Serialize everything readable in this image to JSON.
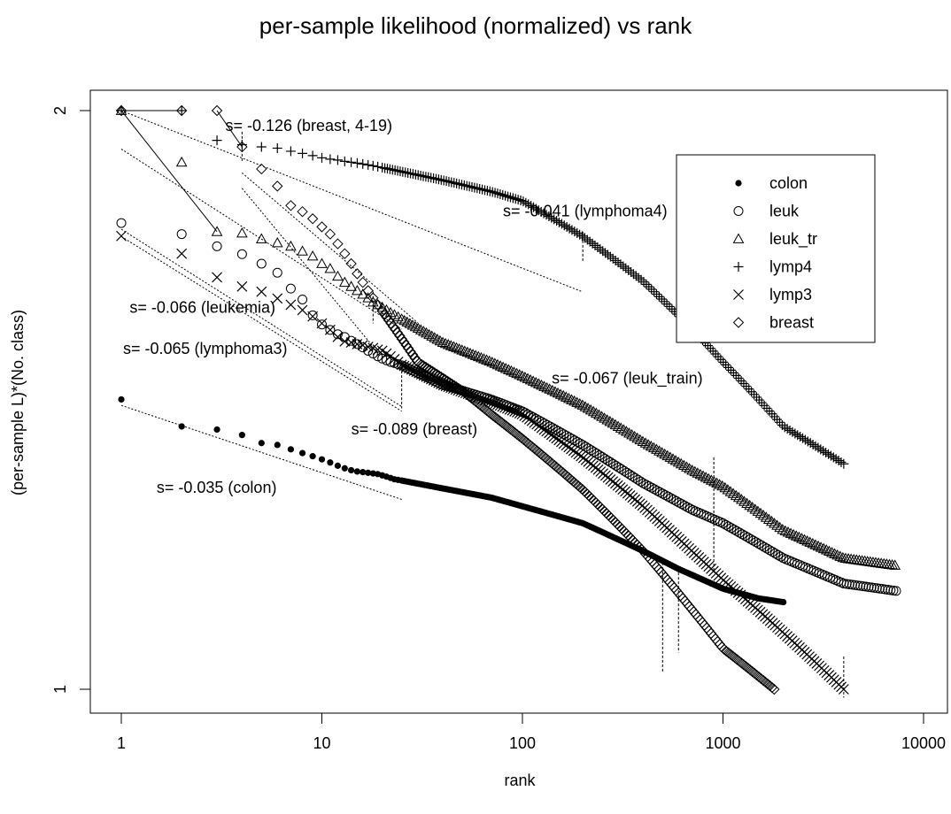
{
  "chart_data": {
    "type": "scatter",
    "title": "per-sample likelihood (normalized)  vs rank",
    "xlabel": "rank",
    "ylabel": "(per-sample L)*(No. class)",
    "x_scale": "log",
    "y_scale": "log",
    "xlim": [
      0.8,
      11000
    ],
    "ylim": [
      0.96,
      2.04
    ],
    "x_ticks": [
      1,
      10,
      100,
      1000,
      10000
    ],
    "x_tick_labels": [
      "1",
      "10",
      "100",
      "1000",
      "10000"
    ],
    "y_ticks": [
      1,
      2
    ],
    "y_tick_labels": [
      "1",
      "2"
    ],
    "grid": false,
    "legend_position": "top-right",
    "series": [
      {
        "name": "colon",
        "marker": "dot",
        "head_x": [
          1,
          2,
          3,
          4,
          5,
          6,
          7,
          8,
          9,
          10,
          11,
          12,
          13,
          14,
          15,
          16,
          17,
          18,
          19,
          20,
          21,
          22,
          23,
          24,
          25
        ],
        "head_y": [
          1.415,
          1.37,
          1.365,
          1.356,
          1.343,
          1.34,
          1.333,
          1.327,
          1.322,
          1.317,
          1.312,
          1.307,
          1.303,
          1.3,
          1.298,
          1.297,
          1.296,
          1.295,
          1.294,
          1.292,
          1.29,
          1.288,
          1.286,
          1.285,
          1.284
        ],
        "tail_x": [
          25,
          40,
          70,
          100,
          200,
          400,
          600,
          1000,
          1500,
          2000
        ],
        "tail_y": [
          1.284,
          1.272,
          1.258,
          1.245,
          1.22,
          1.18,
          1.155,
          1.128,
          1.115,
          1.11
        ]
      },
      {
        "name": "leuk",
        "marker": "circle",
        "head_x": [
          1,
          2,
          3,
          4,
          5,
          6,
          7,
          8,
          9,
          10,
          11,
          12,
          13,
          14,
          15,
          16,
          17,
          18,
          19,
          20,
          21,
          22,
          23,
          24,
          25
        ],
        "head_y": [
          1.748,
          1.725,
          1.7,
          1.684,
          1.665,
          1.647,
          1.616,
          1.595,
          1.565,
          1.548,
          1.538,
          1.53,
          1.525,
          1.518,
          1.512,
          1.506,
          1.5,
          1.495,
          1.49,
          1.486,
          1.483,
          1.48,
          1.478,
          1.476,
          1.474
        ],
        "tail_x": [
          25,
          40,
          70,
          100,
          200,
          400,
          700,
          1000,
          2000,
          4000,
          7300
        ],
        "tail_y": [
          1.474,
          1.44,
          1.415,
          1.395,
          1.34,
          1.28,
          1.24,
          1.22,
          1.17,
          1.135,
          1.125
        ]
      },
      {
        "name": "leuk_tr",
        "marker": "triangle",
        "head_x": [
          1,
          2,
          3,
          4,
          5,
          6,
          7,
          8,
          9,
          10,
          11,
          12,
          13,
          14,
          15,
          16,
          17,
          18,
          19,
          20,
          21,
          22,
          23,
          24,
          25
        ],
        "head_y": [
          2.0,
          1.88,
          1.73,
          1.727,
          1.715,
          1.707,
          1.7,
          1.69,
          1.68,
          1.665,
          1.655,
          1.64,
          1.628,
          1.62,
          1.612,
          1.605,
          1.598,
          1.59,
          1.585,
          1.58,
          1.575,
          1.57,
          1.566,
          1.562,
          1.558
        ],
        "tail_x": [
          25,
          40,
          70,
          100,
          200,
          400,
          700,
          1000,
          2000,
          4000,
          7200
        ],
        "tail_y": [
          1.558,
          1.515,
          1.48,
          1.455,
          1.405,
          1.345,
          1.3,
          1.275,
          1.21,
          1.17,
          1.16
        ]
      },
      {
        "name": "lymp4",
        "marker": "plus",
        "head_x": [
          1,
          2,
          3,
          4,
          5,
          6,
          7,
          8,
          9,
          10,
          11,
          12,
          13,
          14,
          15,
          16,
          17,
          18,
          19,
          20
        ],
        "head_y": [
          2.0,
          2.0,
          1.93,
          1.92,
          1.915,
          1.912,
          1.905,
          1.9,
          1.895,
          1.89,
          1.887,
          1.885,
          1.882,
          1.88,
          1.878,
          1.876,
          1.874,
          1.872,
          1.87,
          1.868
        ],
        "tail_x": [
          20,
          40,
          70,
          100,
          200,
          400,
          700,
          1000,
          2000,
          4000
        ],
        "tail_y": [
          1.868,
          1.84,
          1.815,
          1.795,
          1.72,
          1.63,
          1.54,
          1.48,
          1.37,
          1.31
        ]
      },
      {
        "name": "lymp3",
        "marker": "cross",
        "head_x": [
          1,
          2,
          3,
          4,
          5,
          6,
          7,
          8,
          9,
          10,
          11,
          12,
          13,
          14,
          15,
          16,
          17,
          18,
          19,
          20,
          21,
          22,
          23,
          24,
          25
        ],
        "head_y": [
          1.721,
          1.685,
          1.638,
          1.62,
          1.61,
          1.597,
          1.585,
          1.575,
          1.563,
          1.55,
          1.538,
          1.525,
          1.517,
          1.515,
          1.512,
          1.51,
          1.507,
          1.505,
          1.502,
          1.5,
          1.495,
          1.49,
          1.485,
          1.48,
          1.475
        ],
        "tail_x": [
          25,
          40,
          70,
          100,
          200,
          400,
          700,
          1000,
          2000,
          4000
        ],
        "tail_y": [
          1.475,
          1.44,
          1.41,
          1.39,
          1.32,
          1.245,
          1.18,
          1.14,
          1.07,
          1.0
        ]
      },
      {
        "name": "breast",
        "marker": "diamond",
        "head_x": [
          1,
          2,
          3,
          4,
          5,
          6,
          7,
          8,
          9,
          10,
          11,
          12,
          13,
          14,
          15,
          16,
          17,
          18,
          19,
          20
        ],
        "head_y": [
          2.0,
          2.0,
          2.0,
          1.915,
          1.865,
          1.827,
          1.785,
          1.772,
          1.757,
          1.74,
          1.725,
          1.705,
          1.685,
          1.665,
          1.645,
          1.628,
          1.612,
          1.598,
          1.585,
          1.573
        ],
        "tail_x": [
          20,
          30,
          50,
          70,
          100,
          200,
          400,
          700,
          1000,
          1800
        ],
        "tail_y": [
          1.573,
          1.48,
          1.43,
          1.39,
          1.35,
          1.27,
          1.18,
          1.1,
          1.05,
          1.0
        ]
      }
    ],
    "fit_lines": [
      {
        "label": "s= -0.035 (colon)",
        "slope": -0.035,
        "x_from": 1,
        "x_to": 25,
        "y_at_x1": 1.405
      },
      {
        "label": "s= -0.066 (leukemia)",
        "slope": -0.066,
        "x_from": 1,
        "x_to": 25,
        "y_at_x1": 1.735
      },
      {
        "label": "s= -0.065 (lymphoma3)",
        "slope": -0.065,
        "x_from": 1,
        "x_to": 25,
        "y_at_x1": 1.72
      },
      {
        "label": "s= -0.067 (leuk_train)",
        "slope": -0.067,
        "x_from": 1,
        "x_to": 25,
        "y_at_x1": 1.91
      },
      {
        "label": "s= -0.041 (lymphoma4)",
        "slope": -0.041,
        "x_from": 1,
        "x_to": 200,
        "y_at_x1": 2.0
      },
      {
        "label": "s= -0.089 (breast)",
        "slope": -0.089,
        "x_from": 4,
        "x_to": 30,
        "y_at_x1": 2.1
      },
      {
        "label": "s= -0.126 (breast, 4-19)",
        "slope": -0.126,
        "x_from": 4,
        "x_to": 19,
        "y_at_x1": 2.17
      }
    ],
    "annotations": [
      {
        "text": "s= -0.126 (breast, 4-19)",
        "x": 3.3,
        "y": 1.952
      },
      {
        "text": "s= -0.041 (lymphoma4)",
        "x": 80,
        "y": 1.762
      },
      {
        "text": "s= -0.066 (leukemia)",
        "x": 1.1,
        "y": 1.57
      },
      {
        "text": "s= -0.065 (lymphoma3)",
        "x": 1.02,
        "y": 1.494
      },
      {
        "text": "s= -0.067 (leuk_train)",
        "x": 140,
        "y": 1.442
      },
      {
        "text": "s= -0.089 (breast)",
        "x": 14,
        "y": 1.357
      },
      {
        "text": "s= -0.035 (colon)",
        "x": 1.5,
        "y": 1.265
      }
    ],
    "vertical_markers": [
      {
        "x": 4,
        "y_from": 1.88,
        "y_to": 1.95
      },
      {
        "x": 200,
        "y_from": 1.67,
        "y_to": 1.73
      },
      {
        "x": 18,
        "y_from": 1.55,
        "y_to": 1.61
      },
      {
        "x": 25,
        "y_from": 1.4,
        "y_to": 1.48
      },
      {
        "x": 900,
        "y_from": 1.15,
        "y_to": 1.32
      },
      {
        "x": 500,
        "y_from": 1.02,
        "y_to": 1.17
      },
      {
        "x": 600,
        "y_from": 1.045,
        "y_to": 1.15
      },
      {
        "x": 4000,
        "y_from": 0.99,
        "y_to": 1.04
      }
    ]
  }
}
